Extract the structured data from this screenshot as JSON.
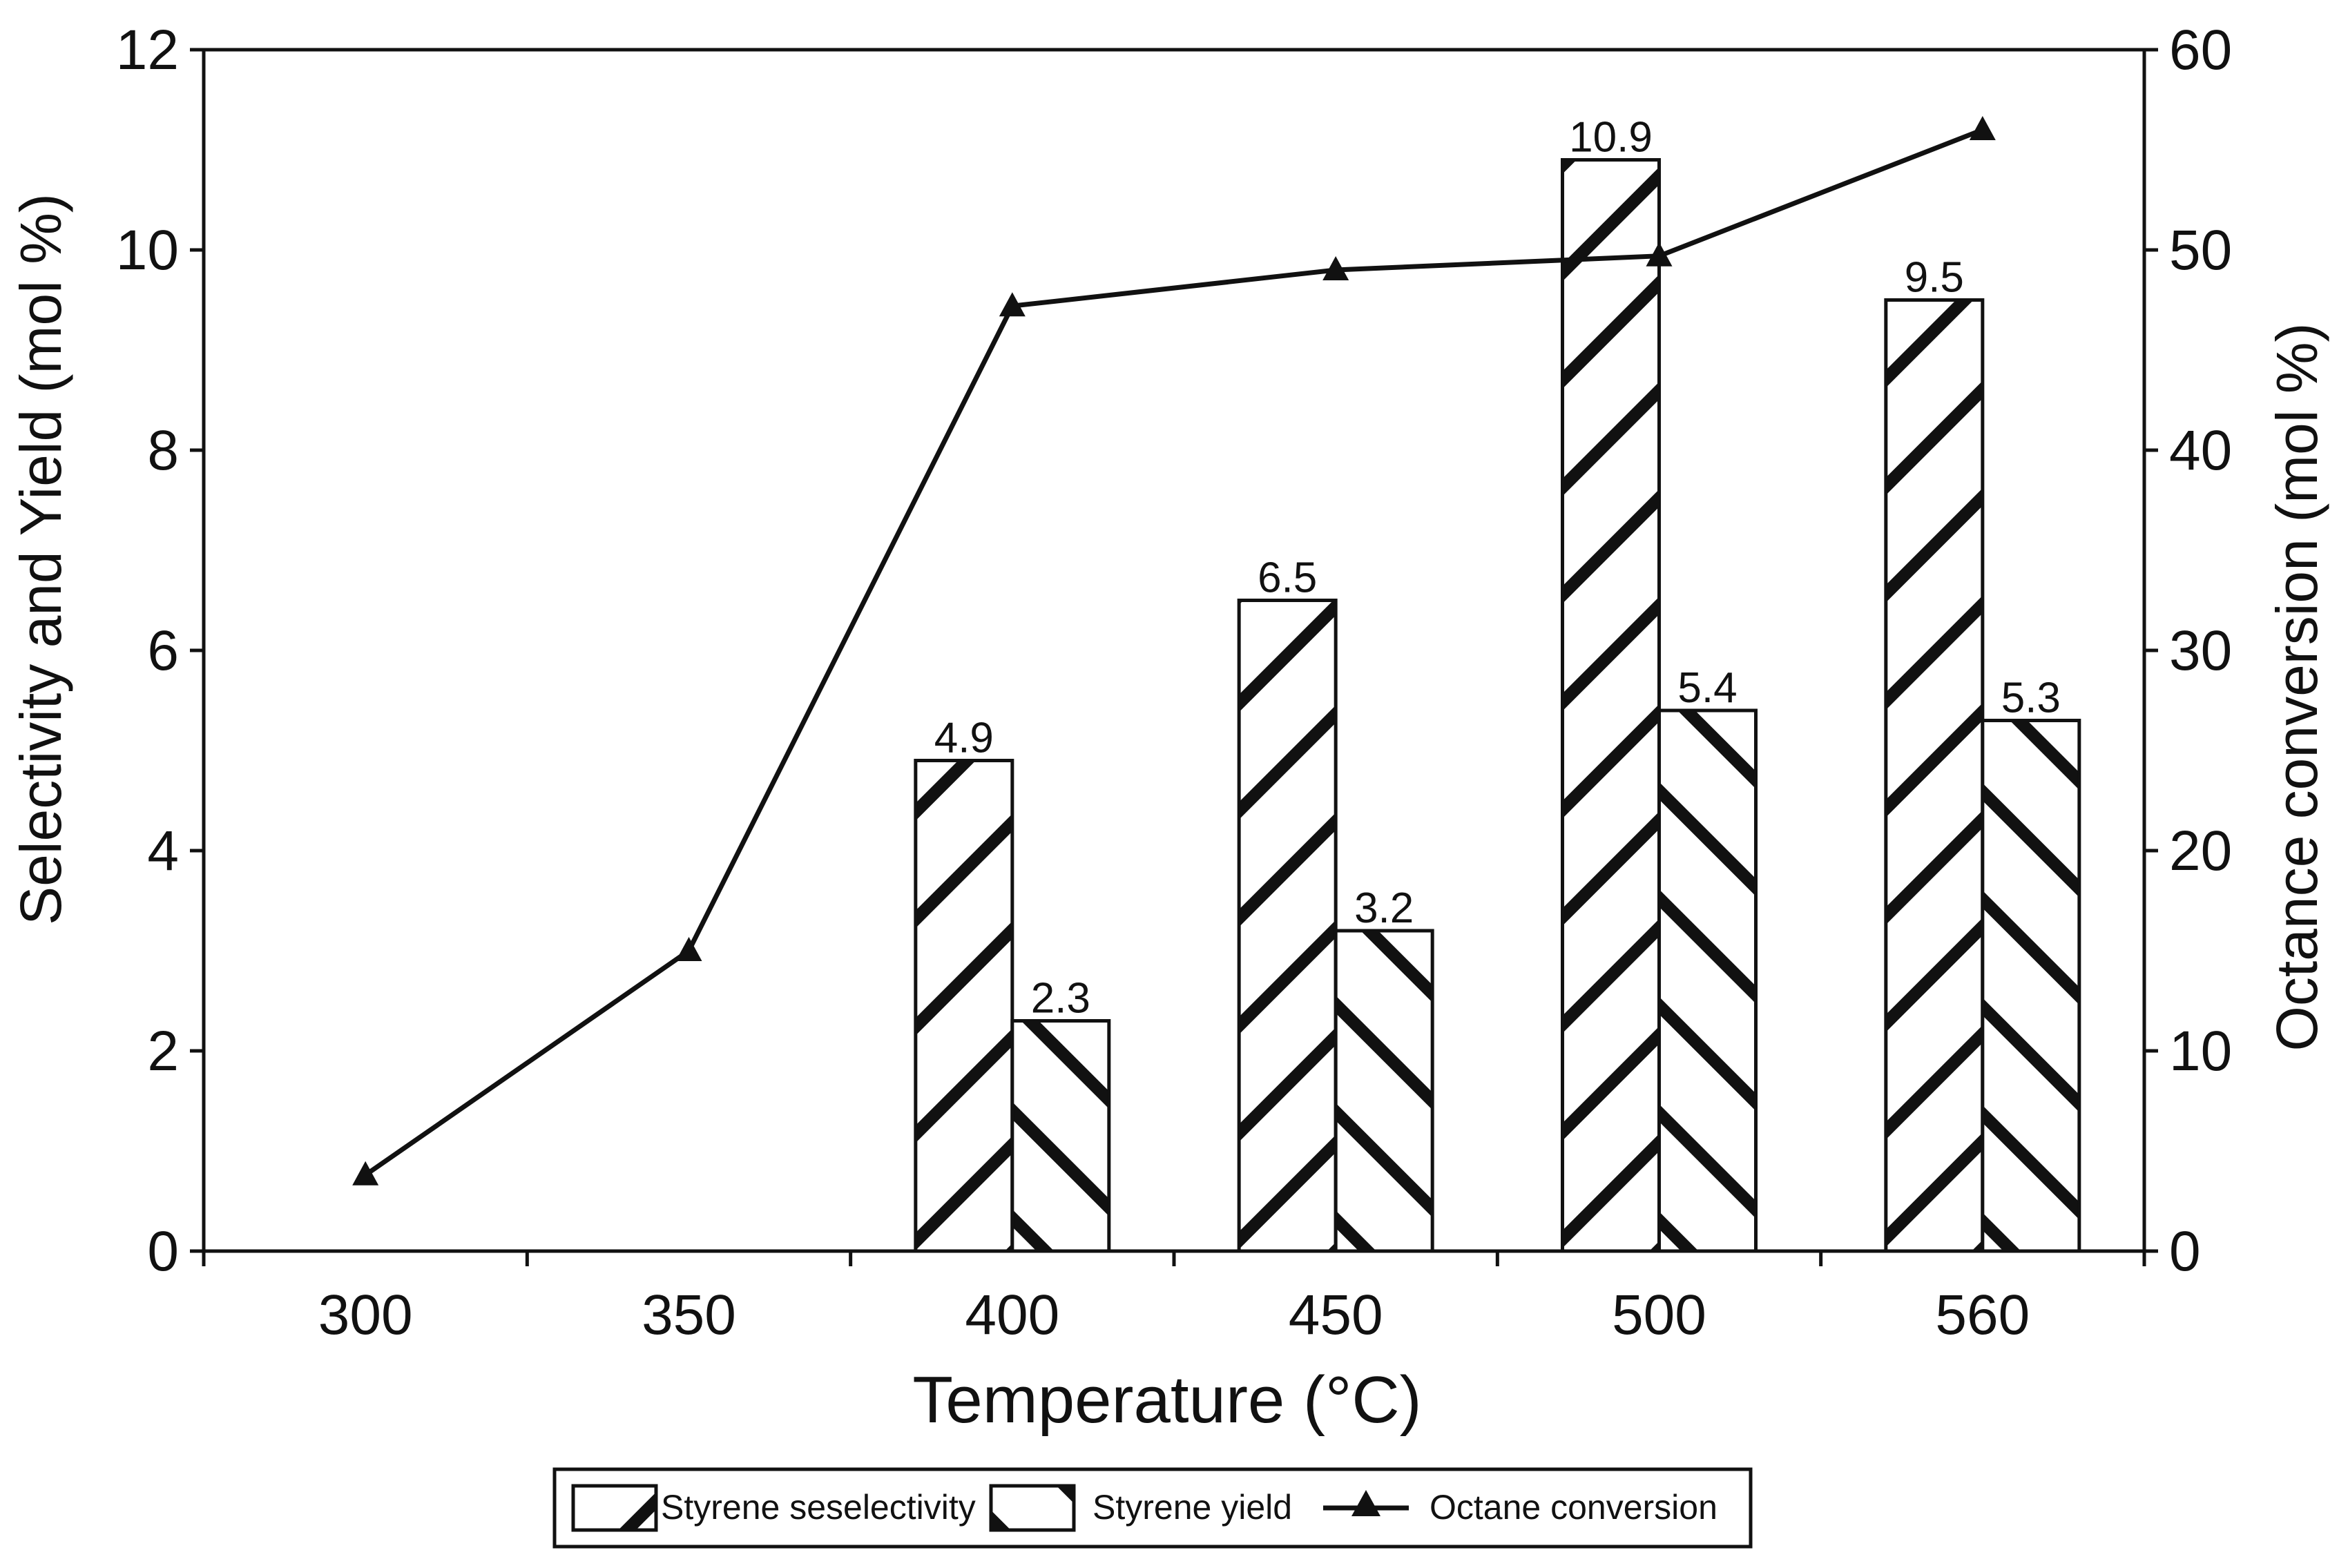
{
  "chart_data": {
    "type": "bar+line",
    "title": "",
    "xlabel": "Temperature (°C)",
    "ylabel": "Selectivity and  Yield (mol %)",
    "y2label": "Octance conversion (mol %)",
    "categories": [
      "300",
      "350",
      "400",
      "450",
      "500",
      "560"
    ],
    "ylim": [
      0,
      12
    ],
    "y2lim": [
      0,
      60
    ],
    "yticks": [
      "0",
      "2",
      "4",
      "6",
      "8",
      "10",
      "12"
    ],
    "y2ticks": [
      "0",
      "10",
      "20",
      "30",
      "40",
      "50",
      "60"
    ],
    "grid": false,
    "legend_position": "bottom-center",
    "series": [
      {
        "name": "Styrene seselectivity",
        "type": "bar",
        "axis": "left",
        "hatch": "forward-diagonal",
        "values": [
          null,
          null,
          4.9,
          6.5,
          10.9,
          9.5
        ],
        "labels": [
          "",
          "",
          "4.9",
          "6.5",
          "10.9",
          "9.5"
        ]
      },
      {
        "name": "Styrene yield",
        "type": "bar",
        "axis": "left",
        "hatch": "backward-diagonal",
        "values": [
          null,
          null,
          2.3,
          3.2,
          5.4,
          5.3
        ],
        "labels": [
          "",
          "",
          "2.3",
          "3.2",
          "5.4",
          "5.3"
        ]
      },
      {
        "name": "Octane conversion",
        "type": "line",
        "axis": "right",
        "marker": "triangle",
        "values": [
          3.8,
          15.0,
          47.2,
          49.0,
          49.7,
          56.0
        ]
      }
    ],
    "colors": {
      "ink": "#111111",
      "bar_fill": "#ffffff",
      "background": "#ffffff"
    }
  }
}
